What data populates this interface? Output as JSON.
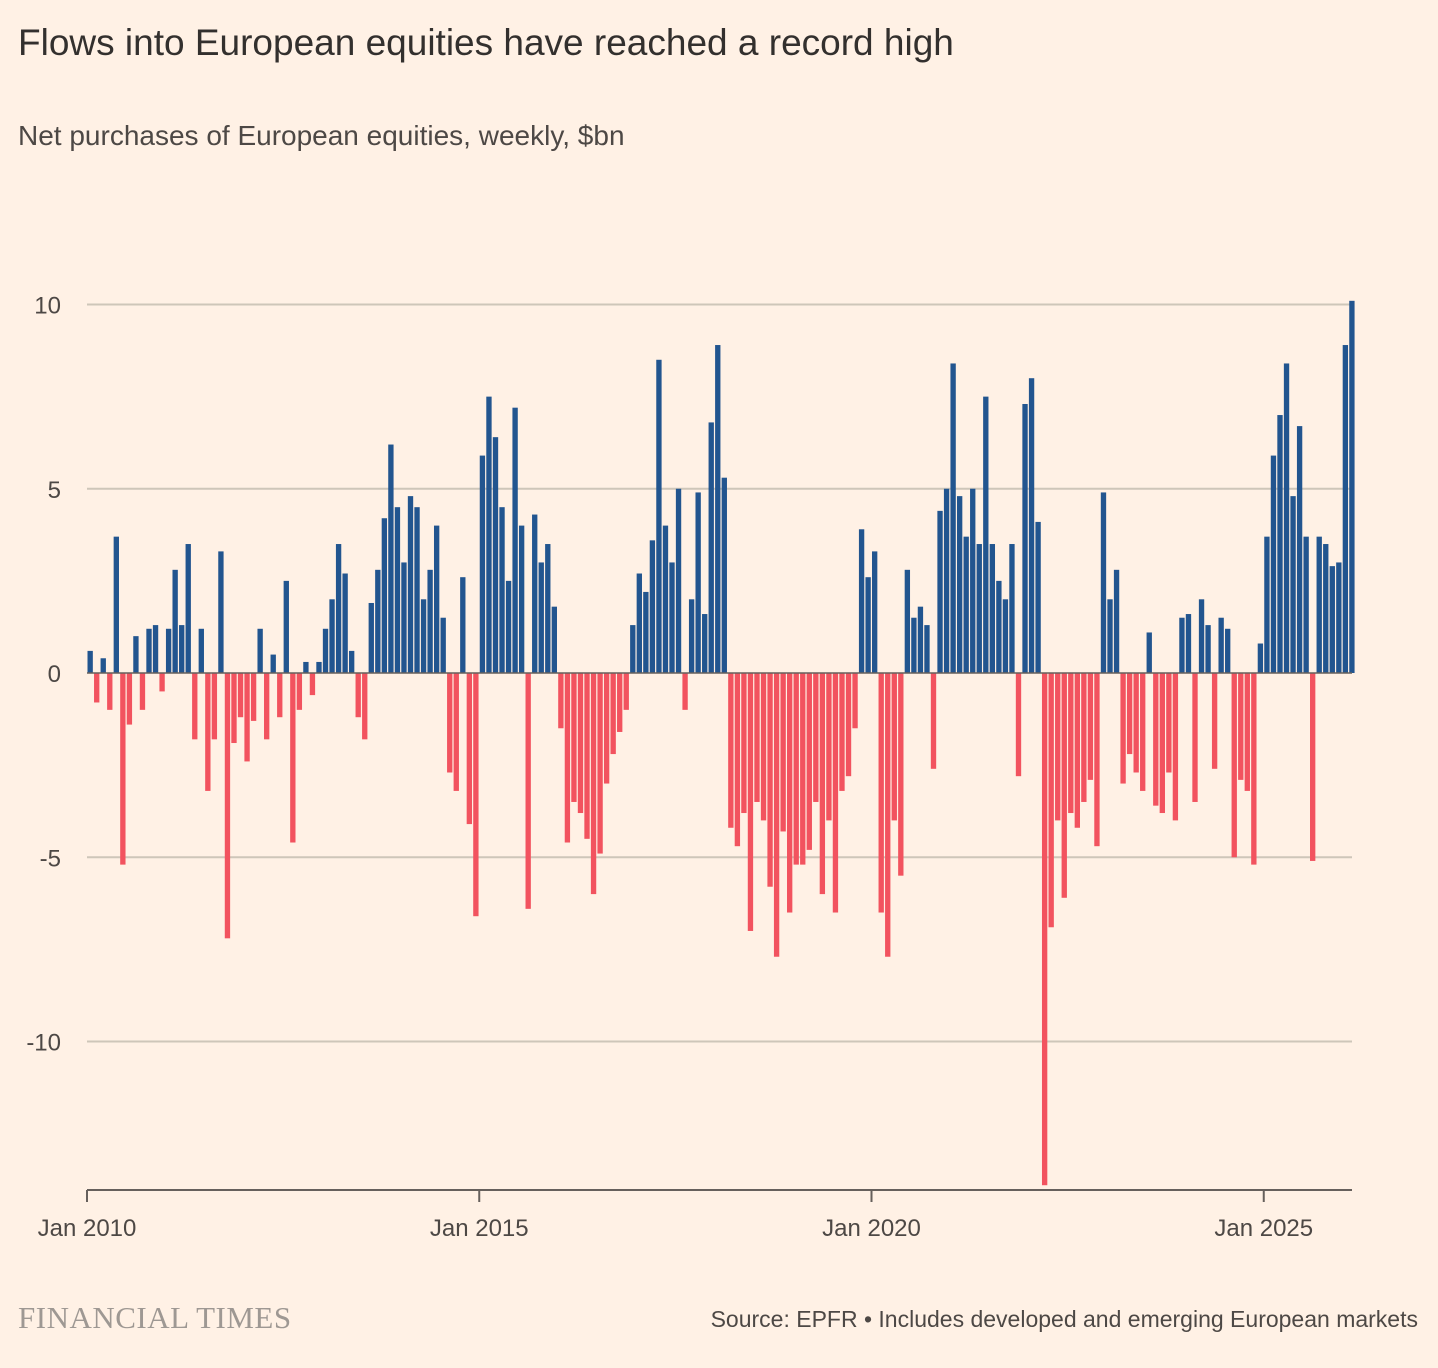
{
  "title": "Flows into European equities have reached a record high",
  "subtitle": "Net purchases of European equities, weekly, $bn",
  "brand": "FINANCIAL TIMES",
  "source": "Source: EPFR • Includes developed and emerging European markets",
  "colors": {
    "positive": "#22558f",
    "negative": "#f2535f",
    "background": "#fff1e5",
    "grid": "#cec6b9"
  },
  "chart_data": {
    "type": "bar",
    "title": "Flows into European equities have reached a record high",
    "ylabel": "Net purchases, $bn",
    "xlabel": "",
    "ylim": [
      -14,
      10
    ],
    "yticks": [
      10,
      5,
      0,
      -5,
      -10
    ],
    "ytick_labels": [
      "10",
      "5",
      "0",
      "-5",
      "-10"
    ],
    "xticks": [
      "Jan 2010",
      "Jan 2015",
      "Jan 2020",
      "Jan 2025"
    ],
    "x_start": "2010-01",
    "x_note": "approximate monthly representative values read from weekly bars",
    "grid": true,
    "values": [
      0.6,
      -0.8,
      0.4,
      -1.0,
      3.7,
      -5.2,
      -1.4,
      1.0,
      -1.0,
      1.2,
      1.3,
      -0.5,
      1.2,
      2.8,
      1.3,
      3.5,
      -1.8,
      1.2,
      -3.2,
      -1.8,
      3.3,
      -7.2,
      -1.9,
      -1.2,
      -2.4,
      -1.3,
      1.2,
      -1.8,
      0.5,
      -1.2,
      2.5,
      -4.6,
      -1.0,
      0.3,
      -0.6,
      0.3,
      1.2,
      2.0,
      3.5,
      2.7,
      0.6,
      -1.2,
      -1.8,
      1.9,
      2.8,
      4.2,
      6.2,
      4.5,
      3.0,
      4.8,
      4.5,
      2.0,
      2.8,
      4.0,
      1.5,
      -2.7,
      -3.2,
      2.6,
      -4.1,
      -6.6,
      5.9,
      7.5,
      6.4,
      4.5,
      2.5,
      7.2,
      4.0,
      -6.4,
      4.3,
      3.0,
      3.5,
      1.8,
      -1.5,
      -4.6,
      -3.5,
      -3.8,
      -4.5,
      -6.0,
      -4.9,
      -3.0,
      -2.2,
      -1.6,
      -1.0,
      1.3,
      2.7,
      2.2,
      3.6,
      8.5,
      4.0,
      3.0,
      5.0,
      -1.0,
      2.0,
      4.9,
      1.6,
      6.8,
      8.9,
      5.3,
      -4.2,
      -4.7,
      -3.8,
      -7.0,
      -3.5,
      -4.0,
      -5.8,
      -7.7,
      -4.3,
      -6.5,
      -5.2,
      -5.2,
      -4.8,
      -3.5,
      -6.0,
      -4.0,
      -6.5,
      -3.2,
      -2.8,
      -1.5,
      3.9,
      2.6,
      3.3,
      -6.5,
      -7.7,
      -4.0,
      -5.5,
      2.8,
      1.5,
      1.8,
      1.3,
      -2.6,
      4.4,
      5.0,
      8.4,
      4.8,
      3.7,
      5.0,
      3.5,
      7.5,
      3.5,
      2.5,
      2.0,
      3.5,
      -2.8,
      7.3,
      8.0,
      4.1,
      -13.9,
      -6.9,
      -4.0,
      -6.1,
      -3.8,
      -4.2,
      -3.5,
      -2.9,
      -4.7,
      4.9,
      2.0,
      2.8,
      -3.0,
      -2.2,
      -2.7,
      -3.2,
      1.1,
      -3.6,
      -3.8,
      -2.7,
      -4.0,
      1.5,
      1.6,
      -3.5,
      2.0,
      1.3,
      -2.6,
      1.5,
      1.2,
      -5.0,
      -2.9,
      -3.2,
      -5.2,
      0.8,
      3.7,
      5.9,
      7.0,
      8.4,
      4.8,
      6.7,
      3.7,
      -5.1,
      3.7,
      3.5,
      2.9,
      3.0,
      8.9,
      10.1
    ]
  }
}
